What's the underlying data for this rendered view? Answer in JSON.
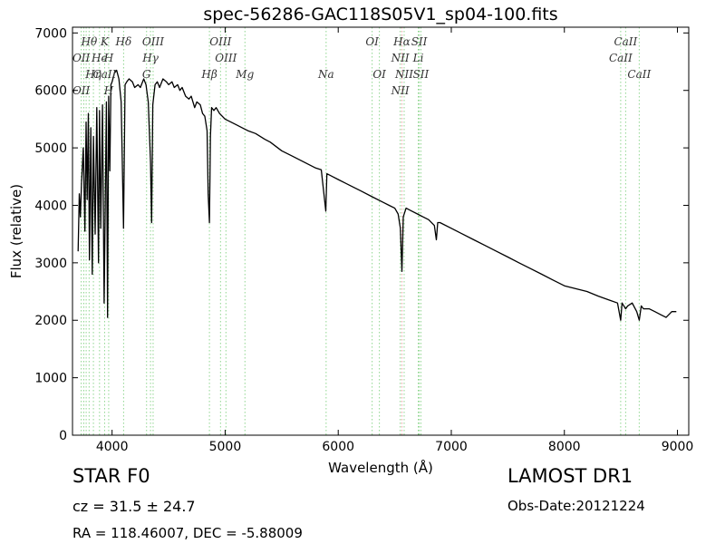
{
  "chart_data": {
    "type": "line",
    "title": "spec-56286-GAC118S05V1_sp04-100.fits",
    "xlabel": "Wavelength (Å)",
    "ylabel": "Flux (relative)",
    "xlim": [
      3650,
      9100
    ],
    "ylim": [
      0,
      7100
    ],
    "xticks": [
      4000,
      5000,
      6000,
      7000,
      8000,
      9000
    ],
    "xtick_labels": [
      "4000",
      "5000",
      "6000",
      "7000",
      "8000",
      "9000"
    ],
    "yticks": [
      0,
      1000,
      2000,
      3000,
      4000,
      5000,
      6000,
      7000
    ],
    "ytick_labels": [
      "0",
      "1000",
      "2000",
      "3000",
      "4000",
      "5000",
      "6000",
      "7000"
    ],
    "grid": false,
    "series": [
      {
        "color": "#000000",
        "x": [
          3700,
          3710,
          3720,
          3730,
          3745,
          3760,
          3770,
          3780,
          3790,
          3800,
          3812,
          3825,
          3835,
          3850,
          3865,
          3880,
          3889,
          3900,
          3915,
          3930,
          3950,
          3960,
          3970,
          3980,
          3990,
          4000,
          4020,
          4040,
          4060,
          4080,
          4101,
          4115,
          4130,
          4150,
          4180,
          4200,
          4230,
          4250,
          4280,
          4300,
          4320,
          4340,
          4350,
          4360,
          4380,
          4400,
          4420,
          4450,
          4480,
          4500,
          4530,
          4550,
          4580,
          4600,
          4620,
          4650,
          4680,
          4700,
          4730,
          4750,
          4780,
          4800,
          4820,
          4840,
          4850,
          4861,
          4870,
          4880,
          4900,
          4920,
          4950,
          5000,
          5050,
          5100,
          5150,
          5200,
          5270,
          5350,
          5400,
          5500,
          5600,
          5700,
          5800,
          5850,
          5890,
          5900,
          5950,
          6000,
          6100,
          6200,
          6300,
          6400,
          6450,
          6500,
          6530,
          6550,
          6563,
          6575,
          6600,
          6650,
          6700,
          6750,
          6800,
          6850,
          6868,
          6880,
          6900,
          7000,
          7100,
          7200,
          7300,
          7400,
          7500,
          7600,
          7700,
          7800,
          7900,
          8000,
          8100,
          8200,
          8300,
          8400,
          8470,
          8498,
          8510,
          8542,
          8560,
          8600,
          8640,
          8662,
          8680,
          8700,
          8750,
          8800,
          8850,
          8900,
          8950,
          8990
        ],
        "y": [
          3200,
          4200,
          3800,
          4400,
          5000,
          3550,
          5450,
          4100,
          5600,
          3050,
          5350,
          2800,
          5200,
          3500,
          5700,
          3000,
          5650,
          3600,
          5750,
          2300,
          5800,
          2050,
          5900,
          4600,
          6100,
          6150,
          6300,
          6350,
          6200,
          5800,
          3600,
          6100,
          6150,
          6200,
          6150,
          6050,
          6100,
          6050,
          6200,
          6100,
          5800,
          4750,
          3700,
          5750,
          6100,
          6150,
          6050,
          6200,
          6150,
          6100,
          6150,
          6050,
          6100,
          6000,
          6050,
          5900,
          5850,
          5900,
          5700,
          5800,
          5750,
          5600,
          5550,
          5300,
          4200,
          3700,
          5200,
          5700,
          5650,
          5700,
          5600,
          5500,
          5450,
          5400,
          5350,
          5300,
          5250,
          5150,
          5100,
          4950,
          4850,
          4750,
          4650,
          4620,
          3900,
          4550,
          4500,
          4450,
          4350,
          4250,
          4150,
          4050,
          4000,
          3950,
          3850,
          3600,
          2850,
          3800,
          3950,
          3900,
          3850,
          3800,
          3750,
          3650,
          3400,
          3700,
          3700,
          3600,
          3500,
          3400,
          3300,
          3200,
          3100,
          3000,
          2900,
          2800,
          2700,
          2600,
          2550,
          2500,
          2420,
          2350,
          2300,
          2000,
          2300,
          2200,
          2250,
          2300,
          2150,
          2000,
          2250,
          2200,
          2200,
          2150,
          2100,
          2050,
          2150,
          2150
        ]
      }
    ],
    "annotations": [
      {
        "text": "Hθ",
        "x": 3797,
        "row": 0,
        "color": "#8fd68f"
      },
      {
        "text": "K",
        "x": 3934,
        "row": 0,
        "color": "#8fd68f"
      },
      {
        "text": "Hδ",
        "x": 4102,
        "row": 0,
        "color": "#8fd68f"
      },
      {
        "text": "OIII",
        "x": 4363,
        "row": 0,
        "color": "#8fd68f"
      },
      {
        "text": "OIII",
        "x": 4959,
        "row": 0,
        "color": "#8fd68f"
      },
      {
        "text": "OI",
        "x": 6300,
        "row": 0,
        "color": "#8fd68f"
      },
      {
        "text": "Hα",
        "x": 6563,
        "row": 0,
        "color": "#e8a0a0"
      },
      {
        "text": "SII",
        "x": 6716,
        "row": 0,
        "color": "#8fd68f"
      },
      {
        "text": "CaII",
        "x": 8542,
        "row": 0,
        "color": "#8fd68f"
      },
      {
        "text": "OII",
        "x": 3727,
        "row": 1,
        "color": "#8fd68f"
      },
      {
        "text": "He",
        "x": 3889,
        "row": 1,
        "color": "#8fd68f"
      },
      {
        "text": "H",
        "x": 3970,
        "row": 1,
        "color": "#8fd68f"
      },
      {
        "text": "Hγ",
        "x": 4340,
        "row": 1,
        "color": "#8fd68f"
      },
      {
        "text": "OIII",
        "x": 5007,
        "row": 1,
        "color": "#8fd68f"
      },
      {
        "text": "NII",
        "x": 6548,
        "row": 1,
        "color": "#8fd68f"
      },
      {
        "text": "Li",
        "x": 6708,
        "row": 1,
        "color": "#8fd68f"
      },
      {
        "text": "CaII",
        "x": 8498,
        "row": 1,
        "color": "#8fd68f"
      },
      {
        "text": "Hη",
        "x": 3835,
        "row": 2,
        "color": "#8fd68f"
      },
      {
        "text": "CaII",
        "x": 3934,
        "row": 2,
        "color": "#8fd68f"
      },
      {
        "text": "G",
        "x": 4305,
        "row": 2,
        "color": "#8fd68f"
      },
      {
        "text": "Hβ",
        "x": 4861,
        "row": 2,
        "color": "#8fd68f"
      },
      {
        "text": "Mg",
        "x": 5175,
        "row": 2,
        "color": "#8fd68f"
      },
      {
        "text": "Na",
        "x": 5893,
        "row": 2,
        "color": "#8fd68f"
      },
      {
        "text": "OI",
        "x": 6364,
        "row": 2,
        "color": "#8fd68f"
      },
      {
        "text": "NII",
        "x": 6583,
        "row": 2,
        "color": "#8fd68f"
      },
      {
        "text": "SII",
        "x": 6731,
        "row": 2,
        "color": "#8fd68f"
      },
      {
        "text": "CaII",
        "x": 8662,
        "row": 2,
        "color": "#8fd68f"
      },
      {
        "text": "OII",
        "x": 3727,
        "row": 3,
        "color": "#8fd68f"
      },
      {
        "text": "H",
        "x": 3970,
        "row": 3,
        "color": "#8fd68f"
      },
      {
        "text": "NII",
        "x": 6548,
        "row": 3,
        "color": "#8fd68f"
      }
    ],
    "line_markers": [
      3727,
      3750,
      3771,
      3797,
      3835,
      3889,
      3934,
      3970,
      4102,
      4305,
      4340,
      4363,
      4861,
      4959,
      5007,
      5175,
      5893,
      6300,
      6364,
      6548,
      6563,
      6583,
      6708,
      6716,
      6731,
      8498,
      8542,
      8662
    ]
  },
  "info": {
    "object_class": "STAR   F0",
    "cz": "cz = 31.5  ± 24.7",
    "ra_dec": "RA = 118.46007, DEC = -5.88009",
    "survey": "LAMOST DR1",
    "obs_date": "Obs-Date:20121224"
  }
}
